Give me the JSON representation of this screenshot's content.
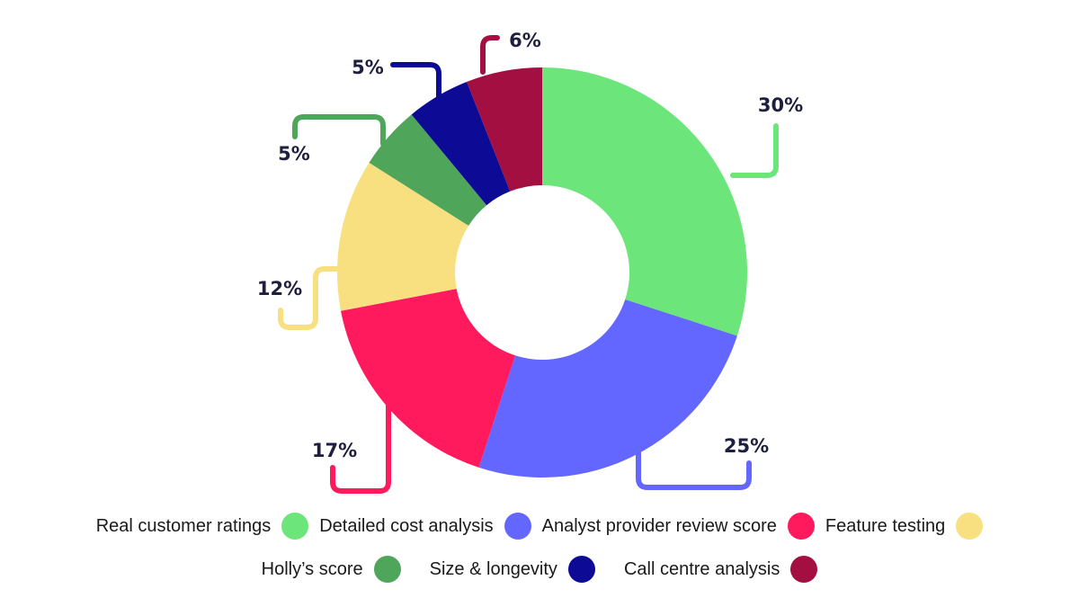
{
  "chart_data": {
    "type": "pie",
    "donut": true,
    "categories": [
      "Real customer ratings",
      "Detailed cost analysis",
      "Analyst provider review score",
      "Feature testing",
      "Holly’s score",
      "Size & longevity",
      "Call centre analysis"
    ],
    "values": [
      30,
      25,
      17,
      12,
      5,
      5,
      6
    ],
    "labels": [
      "30%",
      "25%",
      "17%",
      "12%",
      "5%",
      "5%",
      "6%"
    ],
    "colors": [
      "#6ce67a",
      "#6366ff",
      "#ff1a5e",
      "#f8df7f",
      "#4fa65a",
      "#0d0b96",
      "#a30f40"
    ],
    "legend_placement": "bottom"
  }
}
